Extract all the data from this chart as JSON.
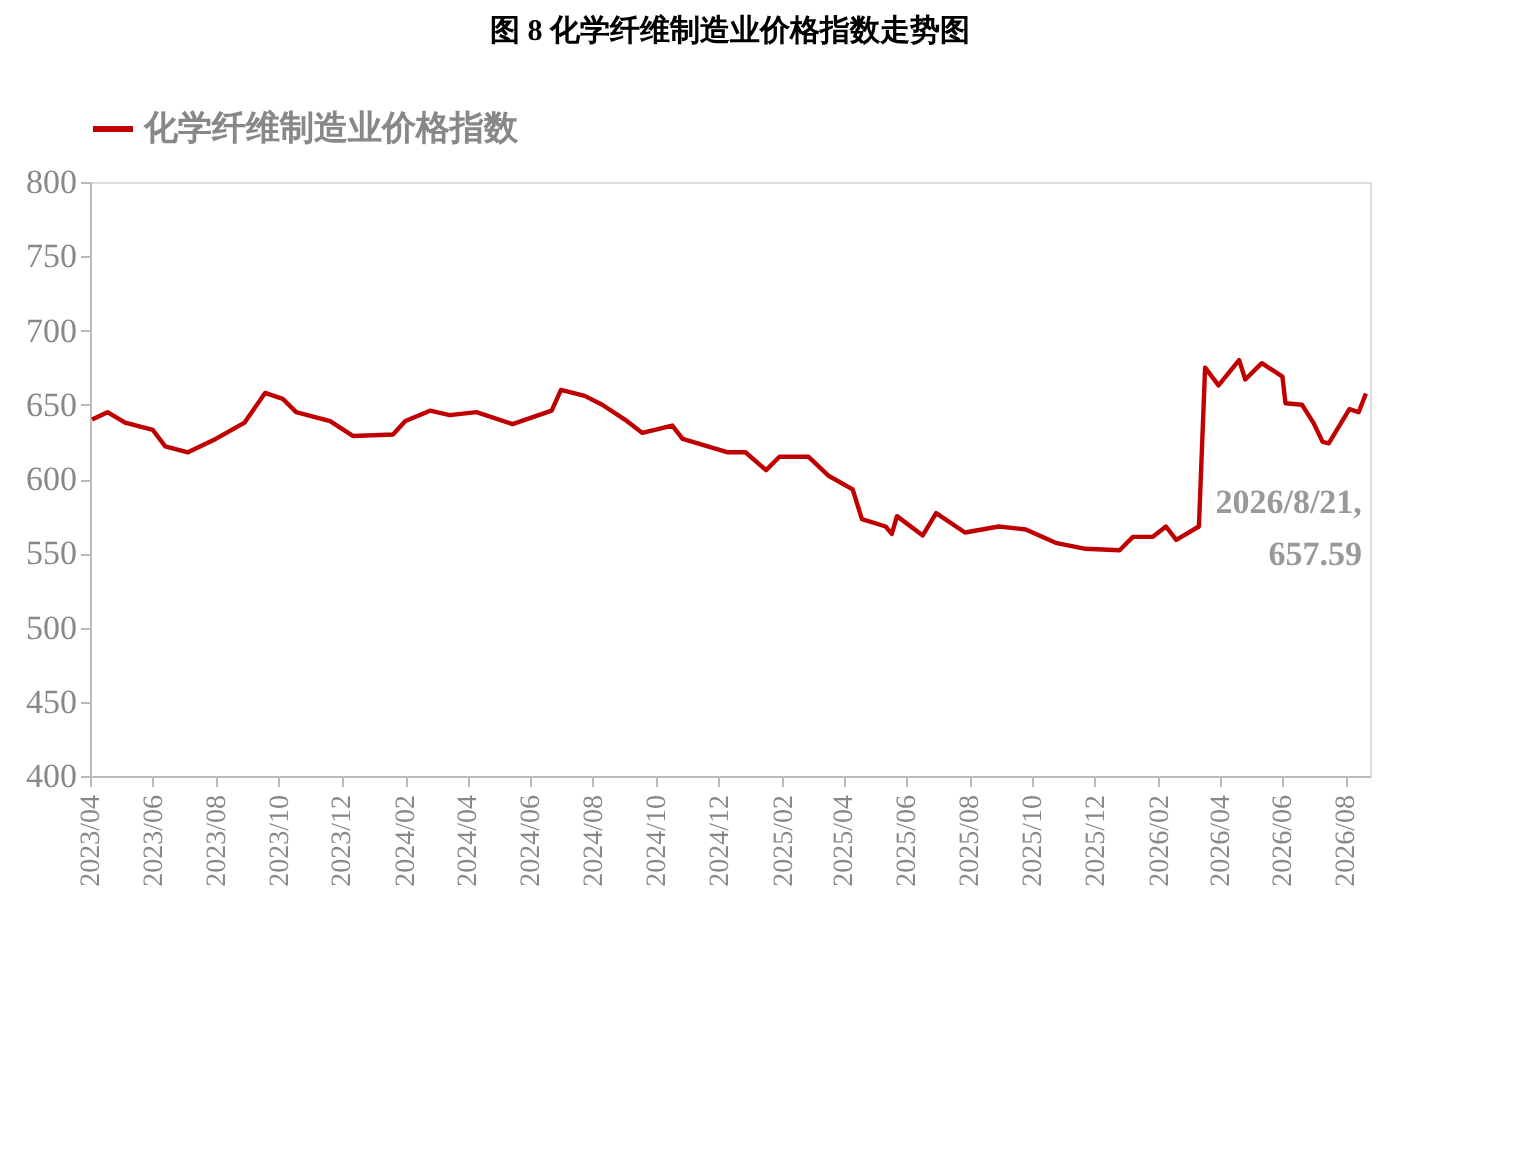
{
  "chart_data": {
    "type": "line",
    "title": "图 8  化学纤维制造业价格指数走势图",
    "x": [
      "2023-04-03",
      "2023-04-18",
      "2023-05-05",
      "2023-06-01",
      "2023-06-13",
      "2023-07-05",
      "2023-08-01",
      "2023-08-29",
      "2023-09-18",
      "2023-10-05",
      "2023-10-18",
      "2023-11-20",
      "2023-12-12",
      "2024-01-20",
      "2024-02-01",
      "2024-02-25",
      "2024-03-15",
      "2024-04-10",
      "2024-05-15",
      "2024-06-22",
      "2024-07-01",
      "2024-07-24",
      "2024-08-10",
      "2024-09-01",
      "2024-09-18",
      "2024-10-17",
      "2024-10-27",
      "2024-12-10",
      "2024-12-27",
      "2025-01-16",
      "2025-01-29",
      "2025-02-26",
      "2025-03-18",
      "2025-04-10",
      "2025-04-19",
      "2025-05-12",
      "2025-05-18",
      "2025-05-23",
      "2025-06-17",
      "2025-06-30",
      "2025-07-28",
      "2025-08-30",
      "2025-09-25",
      "2025-10-24",
      "2025-11-22",
      "2025-12-25",
      "2026-01-07",
      "2026-01-26",
      "2026-02-08",
      "2026-02-18",
      "2026-03-12",
      "2026-03-18",
      "2026-03-31",
      "2026-04-20",
      "2026-04-26",
      "2026-05-12",
      "2026-06-01",
      "2026-06-04",
      "2026-06-20",
      "2026-07-01",
      "2026-07-10",
      "2026-07-16",
      "2026-08-05",
      "2026-08-14",
      "2026-08-21"
    ],
    "series": [
      {
        "name": "化学纤维制造业价格指数",
        "color": "#c00000",
        "values": [
          640,
          645,
          638,
          633,
          622,
          618,
          627,
          638,
          658,
          654,
          645,
          639,
          629,
          630,
          639,
          646,
          643,
          645,
          637,
          646,
          660,
          656,
          650,
          640,
          631,
          636,
          627,
          618,
          618,
          606,
          615,
          615,
          602,
          593,
          573,
          568,
          563,
          575,
          562,
          577,
          564,
          568,
          566,
          557,
          553,
          552,
          561,
          561,
          568,
          559,
          568,
          675,
          663,
          680,
          667,
          678,
          669,
          651,
          650,
          638,
          625,
          624,
          647,
          645,
          657.59
        ]
      }
    ],
    "ylim": [
      400,
      800
    ],
    "yticks": [
      400,
      450,
      500,
      550,
      600,
      650,
      700,
      750,
      800
    ],
    "xlim": [
      "2023-04-01",
      "2026-08-25"
    ],
    "xticks": [
      {
        "value": "2023-04-01",
        "label": "2023/04"
      },
      {
        "value": "2023-06-01",
        "label": "2023/06"
      },
      {
        "value": "2023-08-01",
        "label": "2023/08"
      },
      {
        "value": "2023-10-01",
        "label": "2023/10"
      },
      {
        "value": "2023-12-01",
        "label": "2023/12"
      },
      {
        "value": "2024-02-01",
        "label": "2024/02"
      },
      {
        "value": "2024-04-01",
        "label": "2024/04"
      },
      {
        "value": "2024-06-01",
        "label": "2024/06"
      },
      {
        "value": "2024-08-01",
        "label": "2024/08"
      },
      {
        "value": "2024-10-01",
        "label": "2024/10"
      },
      {
        "value": "2024-12-01",
        "label": "2024/12"
      },
      {
        "value": "2025-02-01",
        "label": "2025/02"
      },
      {
        "value": "2025-04-01",
        "label": "2025/04"
      },
      {
        "value": "2025-06-01",
        "label": "2025/06"
      },
      {
        "value": "2025-08-01",
        "label": "2025/08"
      },
      {
        "value": "2025-10-01",
        "label": "2025/10"
      },
      {
        "value": "2025-12-01",
        "label": "2025/12"
      },
      {
        "value": "2026-02-01",
        "label": "2026/02"
      },
      {
        "value": "2026-04-01",
        "label": "2026/04"
      },
      {
        "value": "2026-06-01",
        "label": "2026/06"
      },
      {
        "value": "2026-08-01",
        "label": "2026/08"
      }
    ],
    "annotations": [
      {
        "text": "2026/8/21,\n657.59",
        "x": "2026-08-21",
        "y": 657.59
      }
    ],
    "legend": "top",
    "grid": false,
    "marker": "none",
    "line_style": "solid"
  }
}
